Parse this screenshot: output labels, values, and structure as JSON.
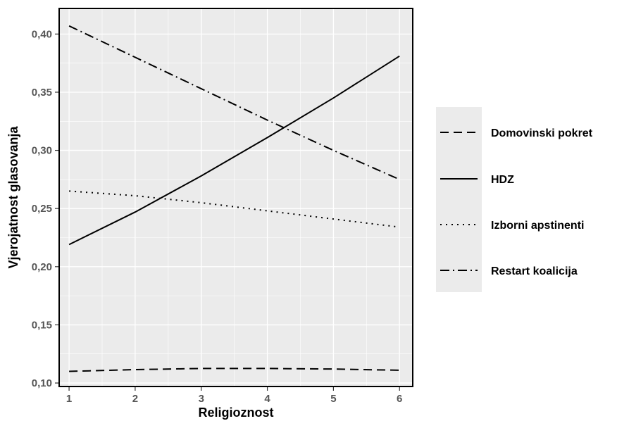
{
  "chart_data": {
    "type": "line",
    "title": "",
    "xlabel": "Religioznost",
    "ylabel": "Vjerojatnost glasovanja",
    "x": [
      1,
      2,
      3,
      4,
      5,
      6
    ],
    "x_ticks": [
      1,
      2,
      3,
      4,
      5,
      6
    ],
    "x_tick_labels": [
      "1",
      "2",
      "3",
      "4",
      "5",
      "6"
    ],
    "xlim": [
      0.85,
      6.2
    ],
    "y_ticks": [
      0.1,
      0.15,
      0.2,
      0.25,
      0.3,
      0.35,
      0.4
    ],
    "y_tick_labels": [
      "0,10",
      "0,15",
      "0,20",
      "0,25",
      "0,30",
      "0,35",
      "0,40"
    ],
    "ylim": [
      0.097,
      0.422
    ],
    "grid": true,
    "legend_position": "right",
    "series": [
      {
        "name": "Domovinski pokret",
        "linestyle": "dashed",
        "values": [
          0.11,
          0.1115,
          0.1125,
          0.1125,
          0.112,
          0.111
        ]
      },
      {
        "name": "HDZ",
        "linestyle": "solid",
        "values": [
          0.219,
          0.247,
          0.278,
          0.311,
          0.345,
          0.381
        ]
      },
      {
        "name": "Izborni apstinenti",
        "linestyle": "dotted",
        "values": [
          0.265,
          0.261,
          0.255,
          0.248,
          0.241,
          0.234
        ]
      },
      {
        "name": "Restart koalicija",
        "linestyle": "dotdash",
        "values": [
          0.407,
          0.38,
          0.353,
          0.326,
          0.3,
          0.275
        ]
      }
    ],
    "colors": {
      "panel_background": "#ebebeb",
      "grid": "#ffffff",
      "line": "#000000",
      "tick_text": "#555555"
    }
  }
}
